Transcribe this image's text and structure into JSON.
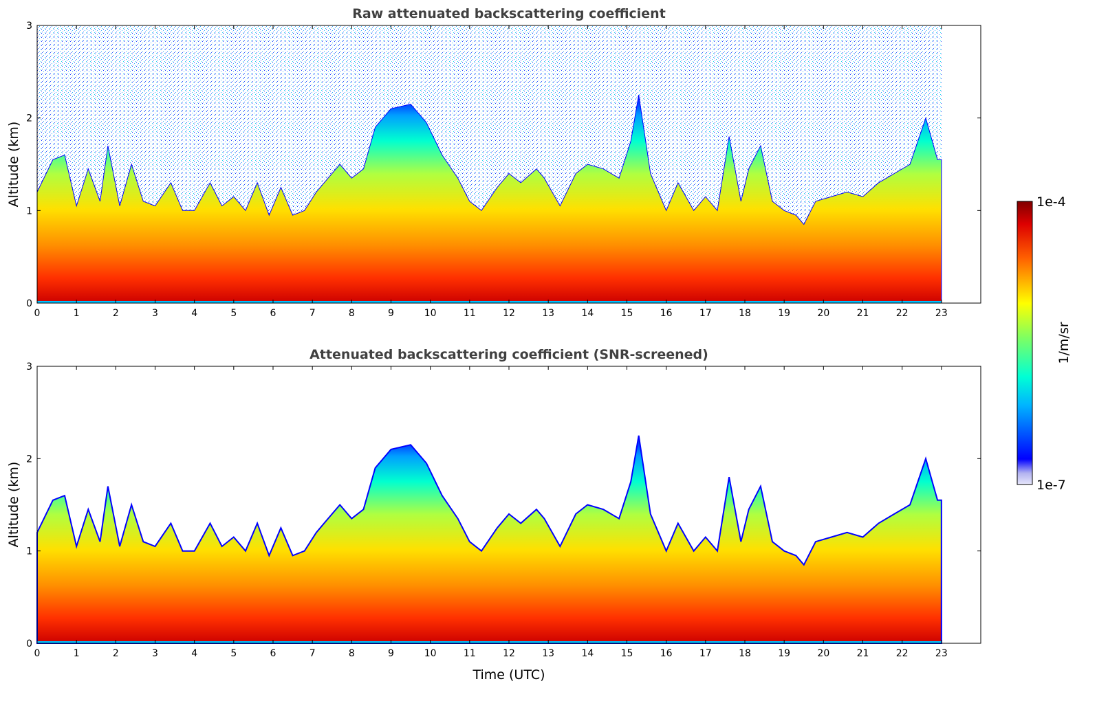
{
  "chart_data": [
    {
      "type": "heatmap",
      "title": "Raw attenuated backscattering coefficient",
      "xlabel": "",
      "ylabel": "Altitude (km)",
      "xlim": [
        0,
        24
      ],
      "ylim": [
        0,
        3
      ],
      "data_x_range": [
        0,
        23
      ],
      "x_ticks": [
        0,
        1,
        2,
        3,
        4,
        5,
        6,
        7,
        8,
        9,
        10,
        11,
        12,
        13,
        14,
        15,
        16,
        17,
        18,
        19,
        20,
        21,
        22,
        23
      ],
      "y_ticks": [
        0,
        1,
        2,
        3
      ],
      "screened": false
    },
    {
      "type": "heatmap",
      "title": "Attenuated backscattering coefficient (SNR-screened)",
      "xlabel": "Time (UTC)",
      "ylabel": "Altitude (km)",
      "xlim": [
        0,
        24
      ],
      "ylim": [
        0,
        3
      ],
      "data_x_range": [
        0,
        23
      ],
      "x_ticks": [
        0,
        1,
        2,
        3,
        4,
        5,
        6,
        7,
        8,
        9,
        10,
        11,
        12,
        13,
        14,
        15,
        16,
        17,
        18,
        19,
        20,
        21,
        22,
        23
      ],
      "y_ticks": [
        0,
        1,
        2,
        3
      ],
      "screened": true
    }
  ],
  "colorbar": {
    "label": "1/m/sr",
    "max_label": "1e-4",
    "min_label": "1e-7",
    "scale": "log",
    "range": [
      1e-07,
      0.0001
    ],
    "colormap": "jet"
  },
  "approx_top_profile_km": {
    "times_utc": [
      0,
      0.4,
      0.7,
      1,
      1.3,
      1.6,
      1.8,
      2.1,
      2.4,
      2.7,
      3,
      3.4,
      3.7,
      4,
      4.4,
      4.7,
      5,
      5.3,
      5.6,
      5.9,
      6.2,
      6.5,
      6.8,
      7.1,
      7.4,
      7.7,
      8,
      8.3,
      8.6,
      9,
      9.5,
      9.9,
      10.3,
      10.7,
      11,
      11.3,
      11.7,
      12,
      12.3,
      12.7,
      12.9,
      13.3,
      13.7,
      14,
      14.4,
      14.8,
      15.1,
      15.3,
      15.6,
      16,
      16.3,
      16.7,
      17,
      17.3,
      17.6,
      17.9,
      18.1,
      18.4,
      18.7,
      19,
      19.3,
      19.5,
      19.8,
      20.2,
      20.6,
      21,
      21.4,
      21.8,
      22.2,
      22.6,
      22.9
    ],
    "altitude_km": [
      1.2,
      1.55,
      1.6,
      1.05,
      1.45,
      1.1,
      1.7,
      1.05,
      1.5,
      1.1,
      1.05,
      1.3,
      1.0,
      1.0,
      1.3,
      1.05,
      1.15,
      1.0,
      1.3,
      0.95,
      1.25,
      0.95,
      1.0,
      1.2,
      1.35,
      1.5,
      1.35,
      1.45,
      1.9,
      2.1,
      2.15,
      1.95,
      1.6,
      1.35,
      1.1,
      1.0,
      1.25,
      1.4,
      1.3,
      1.45,
      1.35,
      1.05,
      1.4,
      1.5,
      1.45,
      1.35,
      1.75,
      2.25,
      1.4,
      1.0,
      1.3,
      1.0,
      1.15,
      1.0,
      1.8,
      1.1,
      1.45,
      1.7,
      1.1,
      1.0,
      0.95,
      0.85,
      1.1,
      1.15,
      1.2,
      1.15,
      1.3,
      1.4,
      1.5,
      2.0,
      1.55
    ]
  }
}
